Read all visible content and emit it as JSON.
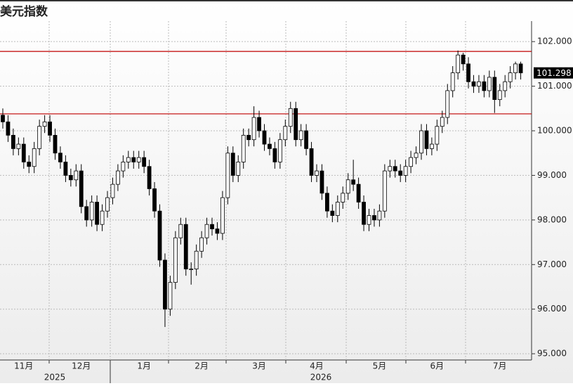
{
  "chart_data": {
    "type": "candlestick",
    "title": "美元指数",
    "categories": [
      null,
      null,
      null,
      null,
      "11月",
      null,
      null,
      null,
      null,
      null,
      null,
      null,
      null,
      null,
      null,
      "12月",
      null,
      null,
      null,
      null,
      null,
      null,
      null,
      null,
      null,
      null,
      null,
      "1月",
      null,
      null,
      null,
      null,
      null,
      null,
      null,
      null,
      null,
      null,
      "2月",
      null,
      null,
      null,
      null,
      null,
      null,
      null,
      null,
      null,
      null,
      "3月",
      null,
      null,
      null,
      null,
      null,
      null,
      null,
      null,
      null,
      null,
      "4月",
      null,
      null,
      null,
      null,
      null,
      null,
      null,
      null,
      null,
      null,
      null,
      "5月",
      null,
      null,
      null,
      null,
      null,
      null,
      null,
      null,
      null,
      null,
      "6月",
      null,
      null,
      null,
      null,
      null,
      null,
      null,
      null,
      null,
      null,
      null,
      "7月",
      null,
      null,
      null,
      null
    ],
    "years": [
      "2025",
      "2026"
    ],
    "open": [
      100.35,
      100.2,
      99.9,
      99.6,
      99.7,
      99.3,
      99.2,
      99.6,
      100.1,
      100.2,
      99.9,
      99.5,
      99.3,
      99.0,
      98.9,
      99.1,
      98.3,
      98.0,
      98.4,
      97.9,
      98.2,
      98.5,
      98.8,
      99.1,
      99.3,
      99.4,
      99.3,
      99.4,
      99.2,
      98.7,
      98.2,
      97.1,
      96.0,
      96.6,
      97.6,
      97.9,
      96.9,
      96.9,
      97.3,
      97.6,
      97.9,
      97.8,
      97.7,
      98.5,
      99.5,
      99.0,
      99.3,
      99.9,
      99.8,
      100.3,
      100.0,
      99.7,
      99.6,
      99.3,
      99.8,
      100.1,
      100.5,
      99.8,
      100.0,
      99.6,
      99.0,
      99.1,
      98.6,
      98.2,
      98.1,
      98.4,
      98.6,
      98.9,
      98.8,
      98.4,
      97.9,
      98.1,
      98.0,
      98.2,
      99.1,
      99.2,
      99.1,
      99.0,
      99.2,
      99.4,
      99.5,
      100.0,
      99.6,
      99.7,
      100.1,
      100.3,
      100.9,
      101.3,
      101.7,
      101.5,
      101.1,
      101.0,
      101.1,
      100.9,
      101.2,
      100.7,
      100.9,
      101.1,
      101.3,
      101.5
    ],
    "high": [
      100.5,
      100.35,
      100.05,
      99.85,
      99.85,
      99.45,
      99.75,
      100.25,
      100.35,
      100.35,
      100.05,
      99.65,
      99.45,
      99.15,
      99.25,
      99.25,
      98.45,
      98.55,
      98.55,
      98.35,
      98.65,
      98.95,
      99.25,
      99.45,
      99.55,
      99.55,
      99.55,
      99.55,
      99.35,
      98.85,
      98.35,
      97.25,
      96.75,
      97.75,
      98.05,
      98.05,
      97.05,
      97.45,
      97.75,
      98.05,
      98.05,
      97.95,
      98.65,
      99.65,
      99.65,
      99.45,
      100.05,
      100.05,
      100.55,
      100.45,
      100.15,
      99.85,
      99.75,
      99.95,
      100.25,
      100.65,
      100.65,
      100.15,
      100.15,
      99.75,
      99.25,
      99.25,
      98.75,
      98.35,
      98.55,
      98.75,
      99.05,
      99.35,
      98.95,
      98.55,
      98.25,
      98.25,
      98.35,
      99.25,
      99.35,
      99.35,
      99.25,
      99.35,
      99.55,
      99.65,
      100.15,
      100.15,
      99.85,
      100.25,
      100.45,
      101.05,
      101.45,
      101.8,
      101.75,
      101.65,
      101.25,
      101.25,
      101.25,
      101.35,
      101.35,
      101.05,
      101.25,
      101.45,
      101.55,
      101.55
    ],
    "low": [
      100.05,
      99.75,
      99.45,
      99.45,
      99.15,
      99.05,
      99.05,
      99.45,
      99.95,
      99.75,
      99.35,
      99.15,
      98.85,
      98.75,
      98.75,
      98.15,
      97.85,
      97.85,
      97.75,
      97.75,
      98.05,
      98.35,
      98.65,
      98.95,
      99.15,
      99.15,
      99.15,
      99.05,
      98.55,
      98.05,
      96.95,
      95.6,
      95.85,
      96.45,
      97.45,
      96.75,
      96.55,
      96.75,
      97.15,
      97.45,
      97.65,
      97.55,
      97.55,
      98.35,
      98.85,
      98.85,
      99.15,
      99.65,
      99.65,
      99.85,
      99.55,
      99.45,
      99.15,
      99.15,
      99.65,
      99.95,
      99.65,
      99.65,
      99.45,
      98.85,
      98.85,
      98.45,
      98.05,
      97.95,
      97.95,
      98.25,
      98.45,
      98.65,
      98.25,
      97.75,
      97.75,
      97.85,
      97.85,
      98.05,
      98.95,
      98.95,
      98.85,
      98.85,
      99.05,
      99.25,
      99.35,
      99.45,
      99.45,
      99.55,
      99.95,
      100.15,
      100.75,
      101.15,
      101.35,
      100.95,
      100.85,
      100.85,
      100.75,
      100.75,
      100.4,
      100.55,
      100.75,
      100.95,
      101.15,
      101.15
    ],
    "close": [
      100.2,
      99.9,
      99.6,
      99.7,
      99.3,
      99.2,
      99.6,
      100.1,
      100.2,
      99.9,
      99.5,
      99.3,
      99.0,
      98.9,
      99.1,
      98.3,
      98.0,
      98.4,
      97.9,
      98.2,
      98.5,
      98.8,
      99.1,
      99.3,
      99.4,
      99.3,
      99.4,
      99.2,
      98.7,
      98.2,
      97.1,
      96.0,
      96.6,
      97.6,
      97.9,
      96.9,
      96.9,
      97.3,
      97.6,
      97.9,
      97.8,
      97.7,
      98.5,
      99.5,
      99.0,
      99.3,
      99.9,
      99.8,
      100.3,
      100.0,
      99.7,
      99.6,
      99.3,
      99.8,
      100.1,
      100.5,
      99.8,
      100.0,
      99.6,
      99.0,
      99.1,
      98.6,
      98.2,
      98.1,
      98.4,
      98.6,
      98.9,
      98.8,
      98.4,
      97.9,
      98.1,
      98.0,
      98.2,
      99.1,
      99.2,
      99.1,
      99.0,
      99.2,
      99.4,
      99.5,
      100.0,
      99.6,
      99.7,
      100.1,
      100.3,
      100.9,
      101.3,
      101.7,
      101.5,
      101.1,
      101.0,
      101.1,
      100.9,
      101.2,
      100.7,
      100.9,
      101.1,
      101.3,
      101.5,
      101.298
    ],
    "hlines": [
      {
        "value": 101.78,
        "color": "#c00000"
      },
      {
        "value": 100.38,
        "color": "#c00000"
      }
    ],
    "ylim": [
      94.86,
      102.46
    ],
    "yticks": [
      {
        "value": 95,
        "label": "95.000"
      },
      {
        "value": 96,
        "label": "96.000"
      },
      {
        "value": 97,
        "label": "97.000"
      },
      {
        "value": 98,
        "label": "98.000"
      },
      {
        "value": 99,
        "label": "99.000"
      },
      {
        "value": 100,
        "label": "100.000"
      },
      {
        "value": 101,
        "label": "101.000"
      },
      {
        "value": 102,
        "label": "102.000"
      }
    ],
    "grid": true,
    "up_color": "#ffffff",
    "down_color": "#000000"
  }
}
